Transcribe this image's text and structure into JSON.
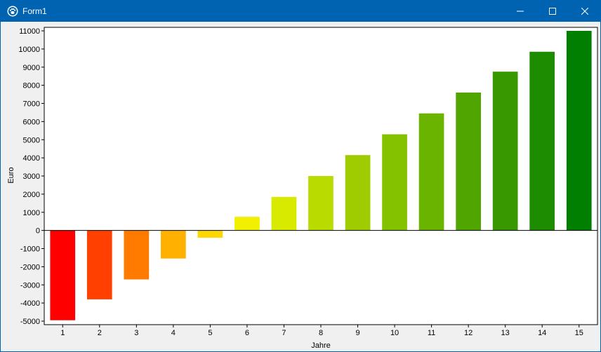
{
  "window": {
    "title": "Form1",
    "icons": {
      "app": "paw-icon",
      "minimize": "minimize-icon",
      "maximize": "maximize-icon",
      "close": "close-icon"
    },
    "colors": {
      "titlebar": "#0063b1",
      "client": "#f0f0f0"
    }
  },
  "chart_data": {
    "type": "bar",
    "title": "",
    "xlabel": "Jahre",
    "ylabel": "Euro",
    "categories": [
      "1",
      "2",
      "3",
      "4",
      "5",
      "6",
      "7",
      "8",
      "9",
      "10",
      "11",
      "12",
      "13",
      "14",
      "15"
    ],
    "values": [
      -4950,
      -3800,
      -2700,
      -1550,
      -400,
      750,
      1850,
      3000,
      4150,
      5300,
      6450,
      7600,
      8750,
      9850,
      11000
    ],
    "colors": [
      "#ff0000",
      "#ff4000",
      "#ff7b00",
      "#ffb000",
      "#ffd700",
      "#f0f000",
      "#d8ea00",
      "#b9db00",
      "#9ecc00",
      "#84c200",
      "#6ab400",
      "#50a500",
      "#379800",
      "#1d8c00",
      "#007f00"
    ],
    "ylim": [
      -5000,
      11000
    ],
    "yticks": [
      -5000,
      -4000,
      -3000,
      -2000,
      -1000,
      0,
      1000,
      2000,
      3000,
      4000,
      5000,
      6000,
      7000,
      8000,
      9000,
      10000,
      11000
    ],
    "grid": false,
    "legend": "none"
  }
}
